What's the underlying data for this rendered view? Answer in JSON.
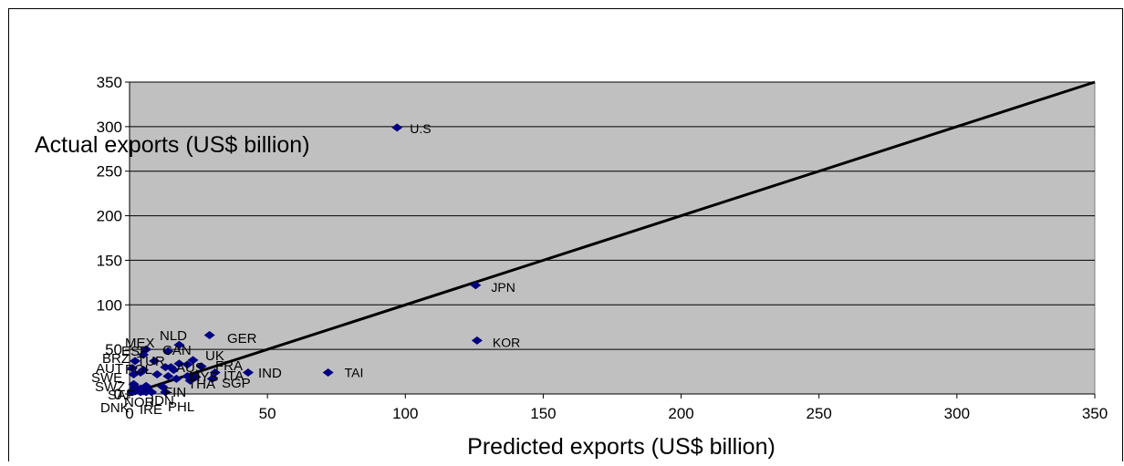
{
  "chart_data": {
    "type": "scatter",
    "title": "",
    "xlabel": "Predicted exports (US$ billion)",
    "ylabel": "Actual exports (US$ billion)",
    "xlim": [
      0,
      350
    ],
    "ylim": [
      0,
      350
    ],
    "xticks": [
      "0",
      "50",
      "100",
      "150",
      "200",
      "250",
      "300",
      "350"
    ],
    "yticks": [
      "0",
      "50",
      "100",
      "150",
      "200",
      "250",
      "300",
      "350"
    ],
    "grid": "horizontal",
    "plot_background": "#c0c0c0",
    "marker_color": "#000080",
    "reference_line": {
      "from": [
        0,
        0
      ],
      "to": [
        350,
        350
      ]
    },
    "points": [
      {
        "label": "U.S",
        "x": 97,
        "y": 299
      },
      {
        "label": "JPN",
        "x": 125.5,
        "y": 122
      },
      {
        "label": "KOR",
        "x": 126,
        "y": 60
      },
      {
        "label": "GER",
        "x": 29,
        "y": 66
      },
      {
        "label": "TAI",
        "x": 72,
        "y": 24
      },
      {
        "label": "IND",
        "x": 43,
        "y": 24
      },
      {
        "label": "NLD",
        "x": 18,
        "y": 55
      },
      {
        "label": "MEX",
        "x": 6,
        "y": 50
      },
      {
        "label": "ESP",
        "x": 5,
        "y": 44
      },
      {
        "label": "CAN",
        "x": 14,
        "y": 48
      },
      {
        "label": "BRZ",
        "x": 2,
        "y": 37
      },
      {
        "label": "TUR",
        "x": 9,
        "y": 37
      },
      {
        "label": "UK",
        "x": 23,
        "y": 38
      },
      {
        "label": "AUS",
        "x": 15,
        "y": 30
      },
      {
        "label": "FRA",
        "x": 26,
        "y": 31
      },
      {
        "label": "AUT",
        "x": 1,
        "y": 29
      },
      {
        "label": "POL",
        "x": 5,
        "y": 27
      },
      {
        "label": "ITA",
        "x": 31,
        "y": 24
      },
      {
        "label": "MYS",
        "x": 21,
        "y": 20
      },
      {
        "label": "SWE",
        "x": 1.5,
        "y": 22
      },
      {
        "label": "THA",
        "x": 22,
        "y": 15
      },
      {
        "label": "SGP",
        "x": 30,
        "y": 17
      },
      {
        "label": "SWZ",
        "x": 1.5,
        "y": 11
      },
      {
        "label": "FIN",
        "x": 12,
        "y": 8
      },
      {
        "label": "SAF",
        "x": 2,
        "y": 3
      },
      {
        "label": "NOR",
        "x": 4,
        "y": -1
      },
      {
        "label": "IDN",
        "x": 8,
        "y": 1
      },
      {
        "label": "DNK",
        "x": 1,
        "y": -5
      },
      {
        "label": "IRE",
        "x": 6,
        "y": -6
      },
      {
        "label": "PHL",
        "x": 13,
        "y": -6
      }
    ],
    "unlabeled_points": [
      [
        1,
        4
      ],
      [
        2,
        8
      ],
      [
        3,
        5
      ],
      [
        4,
        6
      ],
      [
        5,
        3
      ],
      [
        6,
        9
      ],
      [
        7,
        4
      ],
      [
        4,
        24
      ],
      [
        10,
        22
      ],
      [
        13,
        30
      ],
      [
        14,
        20
      ],
      [
        16,
        27
      ],
      [
        17,
        17
      ],
      [
        18,
        34
      ],
      [
        21,
        33
      ],
      [
        24,
        19
      ]
    ]
  }
}
